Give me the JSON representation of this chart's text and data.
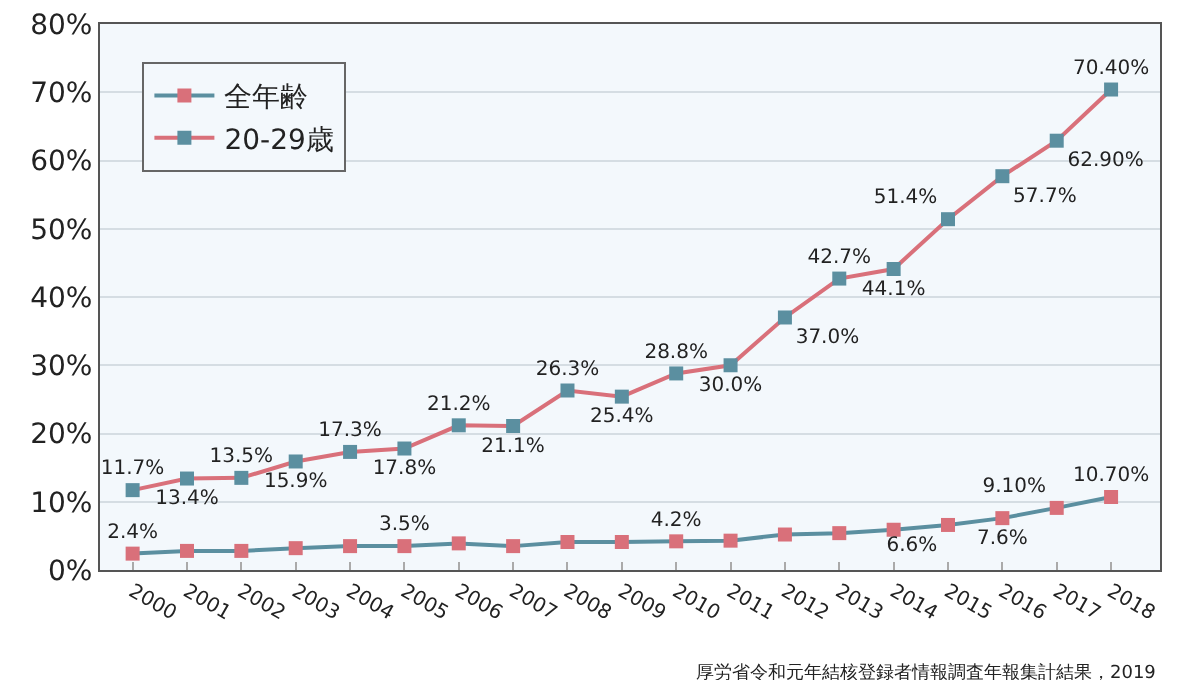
{
  "chart_data": {
    "type": "line",
    "categories": [
      "2000",
      "2001",
      "2002",
      "2003",
      "2004",
      "2005",
      "2006",
      "2007",
      "2008",
      "2009",
      "2010",
      "2011",
      "2012",
      "2013",
      "2014",
      "2015",
      "2016",
      "2017",
      "2018"
    ],
    "series": [
      {
        "name": "全年齢",
        "color": "#5b8fa0",
        "colors": [
          "#d9707a",
          "#d9707a",
          "#d9707a",
          "#d9707a",
          "#d9707a",
          "#d9707a",
          "#d9707a",
          "#d9707a",
          "#d9707a",
          "#d9707a",
          "#d9707a",
          "#d9707a",
          "#d9707a",
          "#d9707a",
          "#d9707a",
          "#d9707a",
          "#d9707a",
          "#d9707a",
          "#d9707a"
        ],
        "values": [
          2.4,
          2.8,
          2.8,
          3.2,
          3.5,
          3.5,
          3.9,
          3.5,
          4.1,
          4.1,
          4.2,
          4.3,
          5.2,
          5.4,
          5.9,
          6.6,
          7.6,
          9.1,
          10.7
        ],
        "value_labels": [
          "2.4%",
          null,
          null,
          null,
          null,
          "3.5%",
          null,
          null,
          null,
          null,
          "4.2%",
          null,
          null,
          null,
          null,
          "6.6%",
          "7.6%",
          "9.10%",
          "10.70%"
        ]
      },
      {
        "name": "20-29歳",
        "color": "#d9707a",
        "colors": [
          "#5b8fa0",
          "#5b8fa0",
          "#5b8fa0",
          "#5b8fa0",
          "#5b8fa0",
          "#5b8fa0",
          "#5b8fa0",
          "#5b8fa0",
          "#5b8fa0",
          "#5b8fa0",
          "#5b8fa0",
          "#5b8fa0",
          "#5b8fa0",
          "#5b8fa0",
          "#5b8fa0",
          "#5b8fa0",
          "#5b8fa0",
          "#5b8fa0",
          "#5b8fa0"
        ],
        "values": [
          11.7,
          13.4,
          13.5,
          15.9,
          17.3,
          17.8,
          21.2,
          21.1,
          26.3,
          25.4,
          28.8,
          30.0,
          37.0,
          42.7,
          44.1,
          51.4,
          57.7,
          62.9,
          70.4
        ],
        "value_labels": [
          "11.7%",
          "13.4%",
          "13.5%",
          "15.9%",
          "17.3%",
          "17.8%",
          "21.2%",
          "21.1%",
          "26.3%",
          "25.4%",
          "28.8%",
          "30.0%",
          "37.0%",
          "42.7%",
          "44.1%",
          "51.4%",
          "57.7%",
          "62.90%",
          "70.40%"
        ]
      }
    ],
    "ylim": [
      0,
      80
    ],
    "yticks": [
      {
        "value": 0,
        "label": "0%"
      },
      {
        "value": 10,
        "label": "10%"
      },
      {
        "value": 20,
        "label": "20%"
      },
      {
        "value": 30,
        "label": "30%"
      },
      {
        "value": 40,
        "label": "40%"
      },
      {
        "value": 50,
        "label": "50%"
      },
      {
        "value": 60,
        "label": "60%"
      },
      {
        "value": 70,
        "label": "70%"
      },
      {
        "value": 80,
        "label": "80%"
      }
    ],
    "grid": "y",
    "legend": "top left",
    "marker": "square",
    "line_style": "solid",
    "annotations": [
      "厚労省令和元年結核登録者情報調査年報集計結果，2019"
    ]
  }
}
